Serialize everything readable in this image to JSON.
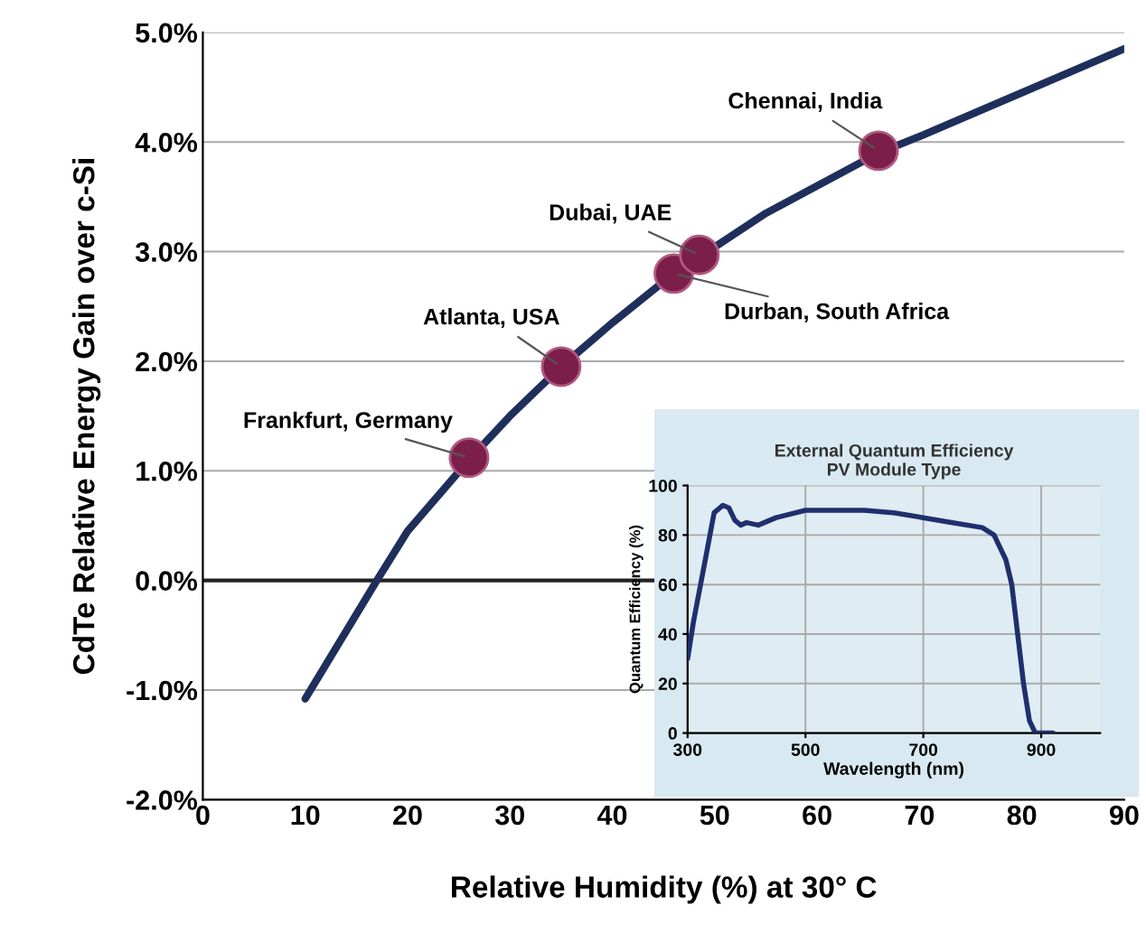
{
  "chart_data": [
    {
      "type": "line",
      "xlabel": "Relative Humidity (%) at 30° C",
      "ylabel": "CdTe Relative Energy Gain over c-Si",
      "series": [
        {
          "color": "#1f2f5c",
          "x": [
            10,
            17,
            20,
            26,
            30,
            35,
            40,
            46,
            48.5,
            55,
            66,
            70,
            80,
            90
          ],
          "values": [
            -1.08,
            0.0,
            0.45,
            1.1,
            1.5,
            1.95,
            2.35,
            2.8,
            2.95,
            3.35,
            3.9,
            4.05,
            4.45,
            4.85
          ]
        },
        {
          "type": "scatter",
          "marker": "circle",
          "color": "#7b1f4a",
          "x": [
            26,
            35,
            46,
            48.5,
            66
          ],
          "values": [
            1.12,
            1.95,
            2.8,
            2.97,
            3.92
          ]
        }
      ],
      "annotations": [
        {
          "text": "Frankfurt, Germany",
          "x": 26,
          "y": 1.12
        },
        {
          "text": "Atlanta, USA",
          "x": 35,
          "y": 1.95
        },
        {
          "text": "Durban, South Africa",
          "x": 46,
          "y": 2.8
        },
        {
          "text": "Dubai, UAE",
          "x": 48.5,
          "y": 2.97
        },
        {
          "text": "Chennai, India",
          "x": 66,
          "y": 3.92
        }
      ],
      "xlim": [
        0,
        90
      ],
      "xticks": [
        0,
        10,
        20,
        30,
        40,
        50,
        60,
        70,
        80,
        90
      ],
      "ylim": [
        -2,
        5
      ],
      "yticks": [
        {
          "value": -2,
          "label": "-2.0%"
        },
        {
          "value": -1,
          "label": "-1.0%"
        },
        {
          "value": 0,
          "label": "0.0%"
        },
        {
          "value": 1,
          "label": "1.0%"
        },
        {
          "value": 2,
          "label": "2.0%"
        },
        {
          "value": 3,
          "label": "3.0%"
        },
        {
          "value": 4,
          "label": "4.0%"
        },
        {
          "value": 5,
          "label": "5.0%"
        }
      ],
      "ref_lines": [
        {
          "axis": "y",
          "value": 0,
          "color": "#222222"
        }
      ],
      "grid": "y"
    },
    {
      "type": "line",
      "title": "External Quantum Efficiency",
      "subtitle": "PV Module Type",
      "xlabel": "Wavelength (nm)",
      "ylabel": "Quantum Efficiency (%)",
      "series": [
        {
          "color": "#1f2f6e",
          "x": [
            300,
            310,
            330,
            345,
            360,
            370,
            380,
            390,
            400,
            420,
            450,
            500,
            550,
            600,
            650,
            700,
            750,
            800,
            820,
            840,
            850,
            860,
            870,
            880,
            890,
            920
          ],
          "values": [
            30,
            45,
            70,
            89,
            92,
            91,
            86,
            84,
            85,
            84,
            87,
            90,
            90,
            90,
            89,
            87,
            85,
            83,
            80,
            70,
            60,
            40,
            20,
            5,
            0,
            0
          ]
        }
      ],
      "xlim": [
        300,
        1000
      ],
      "xticks": [
        300,
        500,
        700,
        900
      ],
      "ylim": [
        0,
        100
      ],
      "yticks": [
        0,
        20,
        40,
        60,
        80,
        100
      ],
      "grid": true
    }
  ]
}
